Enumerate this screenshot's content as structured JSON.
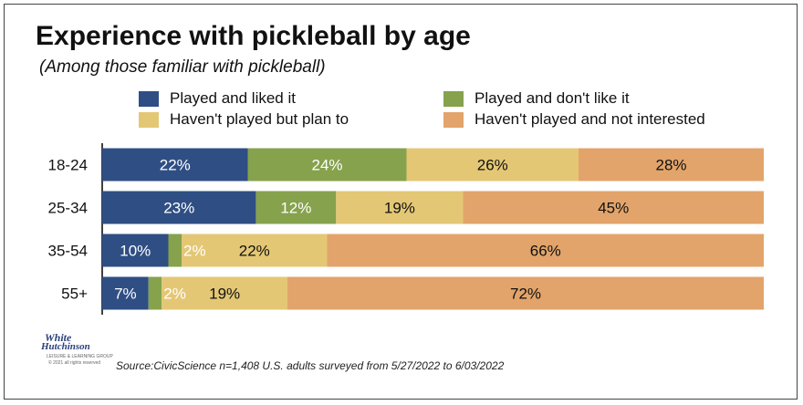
{
  "title": "Experience with pickleball by age",
  "subtitle": "(Among those familiar with pickleball)",
  "source": "Source:CivicScience n=1,408 U.S. adults surveyed from 5/27/2022 to 6/03/2022",
  "logo": {
    "line1": "White",
    "line2": "Hutchinson",
    "tagline": "LEISURE & LEARNING GROUP",
    "copyright": "© 2021 all rights reserved"
  },
  "colors": {
    "played_liked": "#2f4f84",
    "played_dislike": "#86a24d",
    "plan_to": "#e4c775",
    "not_interested": "#e2a46a",
    "axis": "#000000"
  },
  "legend": [
    {
      "label": "Played and liked it",
      "color_key": "played_liked"
    },
    {
      "label": "Played and don't like it",
      "color_key": "played_dislike"
    },
    {
      "label": "Haven't played but plan to",
      "color_key": "plan_to"
    },
    {
      "label": "Haven't played and not interested",
      "color_key": "not_interested"
    }
  ],
  "chart_data": {
    "type": "bar",
    "orientation": "horizontal",
    "stacked": true,
    "percent_scale": true,
    "title": "Experience with pickleball by age",
    "subtitle": "(Among those familiar with pickleball)",
    "categories": [
      "18-24",
      "25-34",
      "35-54",
      "55+"
    ],
    "series": [
      {
        "name": "Played and liked it",
        "color_key": "played_liked",
        "values": [
          22,
          23,
          10,
          7
        ],
        "labels": [
          "22%",
          "23%",
          "10%",
          "7%"
        ],
        "label_color": "#ffffff"
      },
      {
        "name": "Played and don't like it",
        "color_key": "played_dislike",
        "values": [
          24,
          12,
          2,
          2
        ],
        "labels": [
          "24%",
          "12%",
          "2%",
          "2%"
        ],
        "label_color": "#ffffff"
      },
      {
        "name": "Haven't played but plan to",
        "color_key": "plan_to",
        "values": [
          26,
          19,
          22,
          19
        ],
        "labels": [
          "26%",
          "19%",
          "22%",
          "19%"
        ],
        "label_color": "#111111"
      },
      {
        "name": "Haven't played and not interested",
        "color_key": "not_interested",
        "values": [
          28,
          45,
          66,
          72
        ],
        "labels": [
          "28%",
          "45%",
          "66%",
          "72%"
        ],
        "label_color": "#111111"
      }
    ],
    "legend_position": "top",
    "grid": false
  }
}
